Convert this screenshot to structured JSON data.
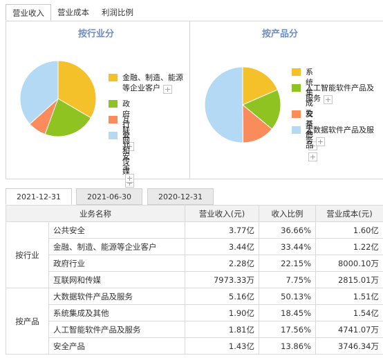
{
  "top_tabs": [
    "营业收入",
    "营业成本",
    "利润比例"
  ],
  "by_industry": {
    "title": "按行业分",
    "legend": [
      {
        "label": "金融、制造、能源等企业客户",
        "color": "#f5c12a",
        "value": 33.44
      },
      {
        "label": "政府行业",
        "color": "#8fc322",
        "value": 22.15
      },
      {
        "label": "互联网和传媒",
        "color": "#f98c5a",
        "value": 7.75
      },
      {
        "label": "公共安全",
        "color": "#b3d9f5",
        "value": 36.66
      }
    ]
  },
  "by_product": {
    "title": "按产品分",
    "legend": [
      {
        "label": "系统集成及其他",
        "color": "#f5c12a",
        "value": 18.45
      },
      {
        "label": "人工智能软件产品及服务",
        "color": "#8fc322",
        "value": 17.56
      },
      {
        "label": "安全产品",
        "color": "#f98c5a",
        "value": 13.86
      },
      {
        "label": "大数据软件产品及服务",
        "color": "#b3d9f5",
        "value": 50.13
      }
    ]
  },
  "plus_symbol": "+",
  "date_tabs": [
    "2021-12-31",
    "2021-06-30",
    "2020-12-31"
  ],
  "table": {
    "headers": [
      "业务名称",
      "营业收入(元)",
      "收入比例",
      "营业成本(元)"
    ],
    "groups": [
      {
        "name": "按行业",
        "rows": [
          [
            "公共安全",
            "3.77亿",
            "36.66%",
            "1.60亿"
          ],
          [
            "金融、制造、能源等企业客户",
            "3.44亿",
            "33.44%",
            "1.22亿"
          ],
          [
            "政府行业",
            "2.28亿",
            "22.15%",
            "8000.10万"
          ],
          [
            "互联网和传媒",
            "7973.33万",
            "7.75%",
            "2815.01万"
          ]
        ]
      },
      {
        "name": "按产品",
        "rows": [
          [
            "大数据软件产品及服务",
            "5.16亿",
            "50.13%",
            "1.51亿"
          ],
          [
            "系统集成及其他",
            "1.90亿",
            "18.45%",
            "1.54亿"
          ],
          [
            "人工智能软件产品及服务",
            "1.81亿",
            "17.56%",
            "4741.07万"
          ],
          [
            "安全产品",
            "1.43亿",
            "13.86%",
            "3746.34万"
          ]
        ]
      }
    ]
  }
}
